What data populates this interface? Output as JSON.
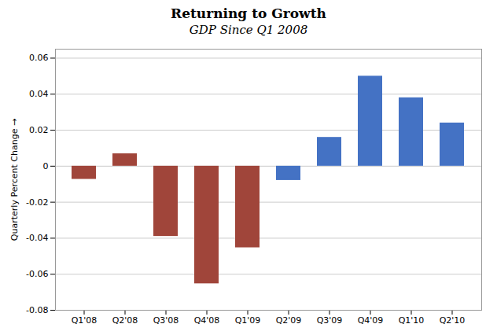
{
  "chart_data": {
    "type": "bar",
    "title": "Returning to Growth",
    "subtitle": "GDP Since Q1 2008",
    "ylabel": "Quarterly Percent Change",
    "categories": [
      "Q1'08",
      "Q2'08",
      "Q3'08",
      "Q4'08",
      "Q1'09",
      "Q2'09",
      "Q3'09",
      "Q4'09",
      "Q1'10",
      "Q2'10"
    ],
    "values": [
      -0.0073,
      0.0069,
      -0.039,
      -0.0653,
      -0.0453,
      -0.0079,
      0.016,
      0.05,
      0.038,
      0.024
    ],
    "colors": [
      "#A0453A",
      "#A0453A",
      "#A0453A",
      "#A0453A",
      "#A0453A",
      "#4472C4",
      "#4472C4",
      "#4472C4",
      "#4472C4",
      "#4472C4"
    ],
    "ylim": [
      -0.08,
      0.065
    ],
    "yticks": [
      -0.08,
      -0.06,
      -0.04,
      -0.02,
      0.0,
      0.02,
      0.04,
      0.06
    ],
    "grid": true
  }
}
